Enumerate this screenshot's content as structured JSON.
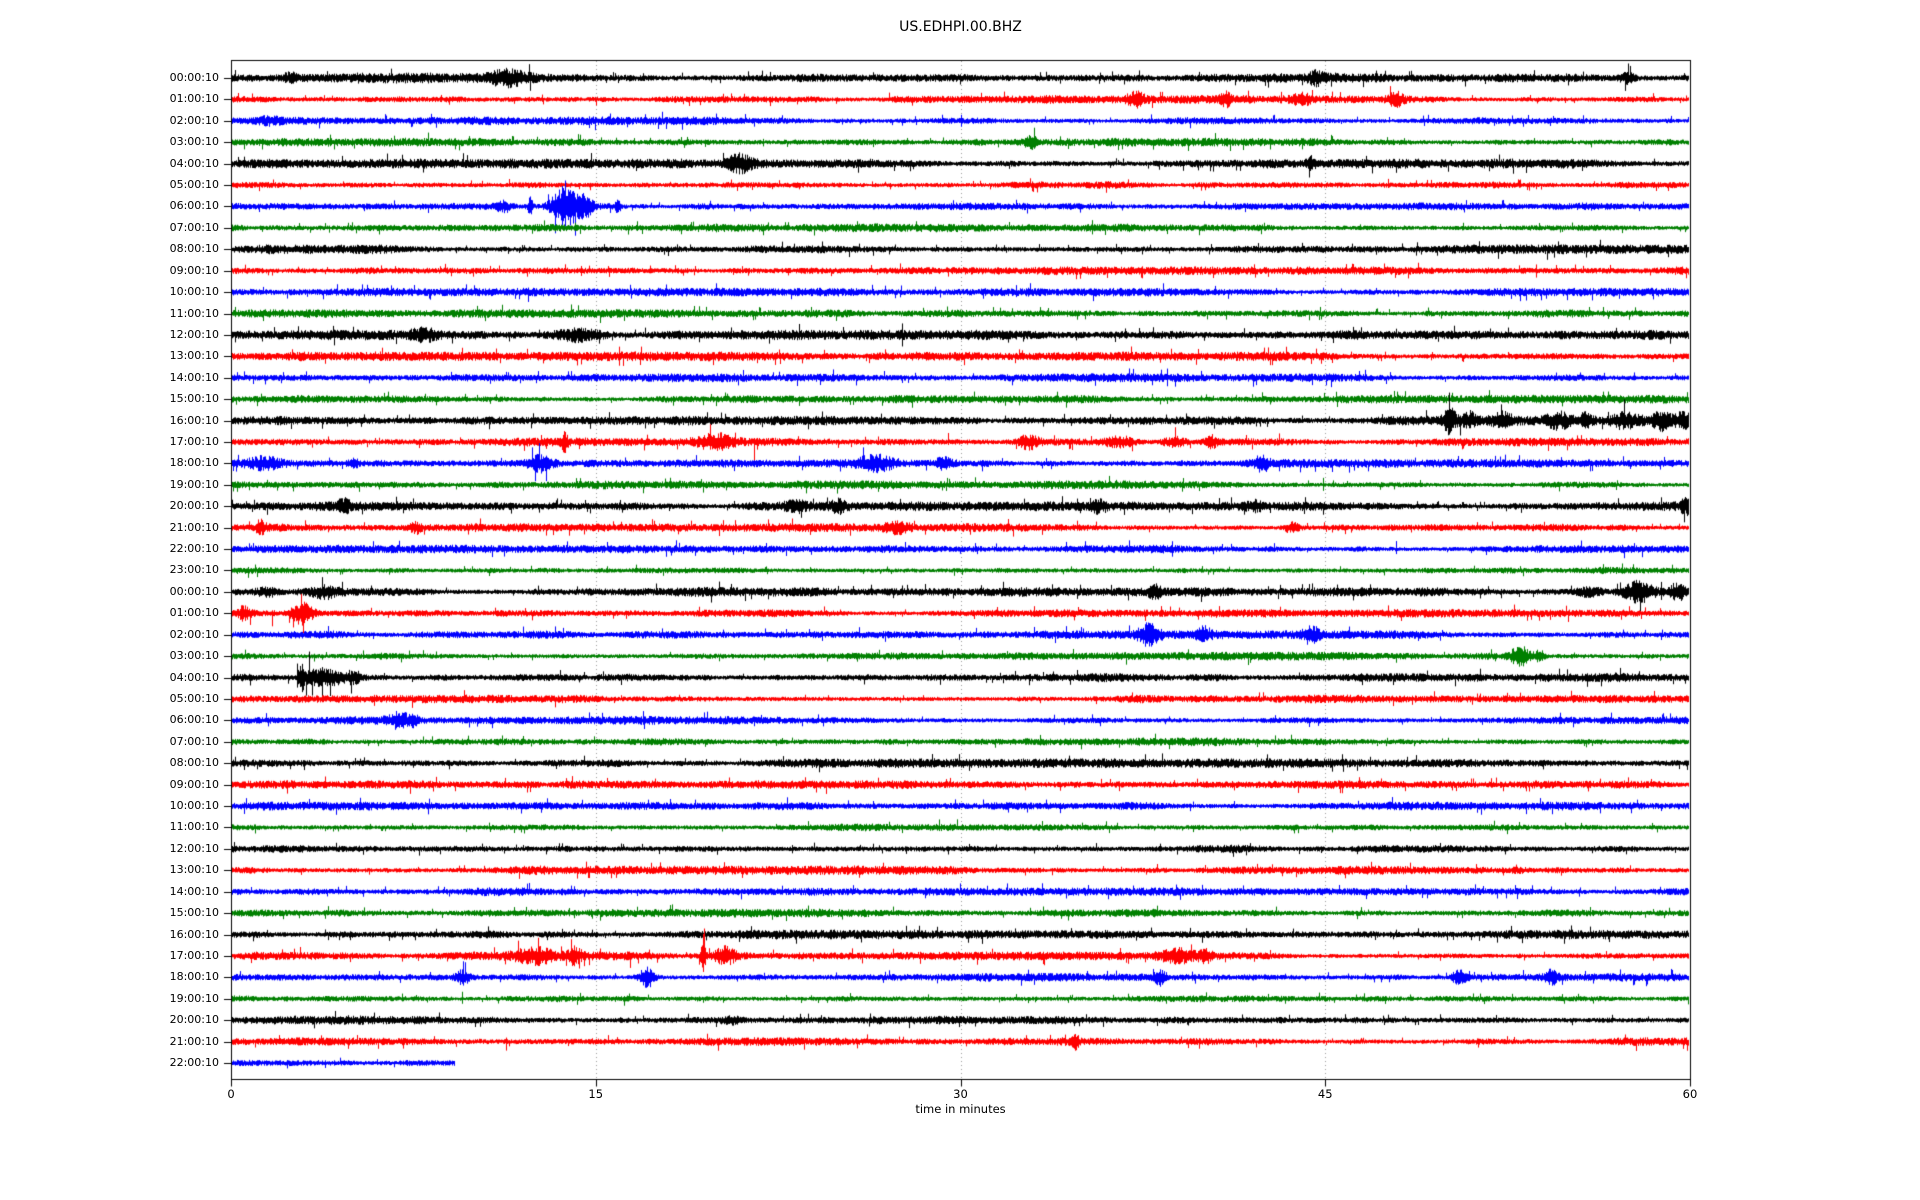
{
  "chart_data": {
    "type": "line",
    "subtype": "helicorder-dayplot",
    "title": "US.EDHPI.00.BHZ",
    "xlabel": "time in minutes",
    "x_range": [
      0,
      60
    ],
    "x_ticks": [
      0,
      15,
      30,
      45,
      60
    ],
    "grid_minutes": [
      15,
      30,
      45
    ],
    "grid_style": "dotted",
    "legend": "none",
    "trace_color_cycle": [
      "#000000",
      "#ff0000",
      "#0000ff",
      "#008000"
    ],
    "rows": [
      {
        "label": "00:00:10",
        "base": 3.4,
        "end": 60,
        "events": [
          {
            "t": 2.4,
            "w": 0.3,
            "a": 3
          },
          {
            "t": 11.4,
            "w": 0.9,
            "a": 4
          },
          {
            "t": 44.6,
            "w": 0.25,
            "a": 4
          },
          {
            "t": 57.4,
            "w": 0.3,
            "a": 4
          }
        ],
        "spikes": [
          {
            "t": 57.4,
            "up": 6,
            "dn": 6
          }
        ]
      },
      {
        "label": "01:00:10",
        "base": 2.7,
        "end": 60,
        "events": [
          {
            "t": 37.2,
            "w": 0.35,
            "a": 6
          },
          {
            "t": 40.9,
            "w": 0.25,
            "a": 4
          },
          {
            "t": 44.0,
            "w": 0.3,
            "a": 4
          },
          {
            "t": 47.9,
            "w": 0.35,
            "a": 5
          }
        ],
        "spikes": [
          {
            "t": 37.2,
            "up": 8,
            "dn": 6
          }
        ]
      },
      {
        "label": "02:00:10",
        "base": 2.7,
        "end": 60,
        "events": [
          {
            "t": 1.5,
            "w": 0.5,
            "a": 2
          }
        ],
        "spikes": []
      },
      {
        "label": "03:00:10",
        "base": 2.7,
        "end": 60,
        "events": [
          {
            "t": 32.9,
            "w": 0.25,
            "a": 4
          }
        ],
        "spikes": []
      },
      {
        "label": "04:00:10",
        "base": 3.1,
        "end": 60,
        "events": [
          {
            "t": 20.9,
            "w": 0.55,
            "a": 6
          },
          {
            "t": 44.4,
            "w": 0.15,
            "a": 4
          }
        ],
        "spikes": []
      },
      {
        "label": "05:00:10",
        "base": 2.7,
        "end": 60,
        "events": [],
        "spikes": []
      },
      {
        "label": "06:00:10",
        "base": 2.7,
        "end": 60,
        "events": [
          {
            "t": 11.2,
            "w": 0.3,
            "a": 4
          },
          {
            "t": 12.3,
            "w": 0.1,
            "a": 7
          },
          {
            "t": 13.75,
            "w": 0.55,
            "a": 16
          },
          {
            "t": 14.6,
            "w": 0.3,
            "a": 7
          },
          {
            "t": 15.9,
            "w": 0.1,
            "a": 5
          }
        ],
        "spikes": [
          {
            "t": 13.75,
            "up": 26,
            "dn": 20
          },
          {
            "t": 12.3,
            "up": 10,
            "dn": 4
          }
        ]
      },
      {
        "label": "07:00:10",
        "base": 2.7,
        "end": 60,
        "events": [],
        "spikes": []
      },
      {
        "label": "08:00:10",
        "base": 3.0,
        "end": 60,
        "events": [],
        "spikes": []
      },
      {
        "label": "09:00:10",
        "base": 2.7,
        "end": 60,
        "events": [],
        "spikes": []
      },
      {
        "label": "10:00:10",
        "base": 2.7,
        "end": 60,
        "events": [],
        "spikes": [
          {
            "t": 32.3,
            "up": 7,
            "dn": 5
          }
        ]
      },
      {
        "label": "11:00:10",
        "base": 2.7,
        "end": 60,
        "events": [],
        "spikes": []
      },
      {
        "label": "12:00:10",
        "base": 3.2,
        "end": 60,
        "events": [
          {
            "t": 7.9,
            "w": 0.5,
            "a": 3
          },
          {
            "t": 14.2,
            "w": 1.0,
            "a": 4
          }
        ],
        "spikes": []
      },
      {
        "label": "13:00:10",
        "base": 3.0,
        "end": 60,
        "events": [],
        "spikes": []
      },
      {
        "label": "14:00:10",
        "base": 2.7,
        "end": 60,
        "events": [],
        "spikes": []
      },
      {
        "label": "15:00:10",
        "base": 2.7,
        "end": 60,
        "events": [],
        "spikes": []
      },
      {
        "label": "16:00:10",
        "base": 3.0,
        "end": 60,
        "events": [
          {
            "t": 50.1,
            "w": 0.25,
            "a": 10
          },
          {
            "t": 50.9,
            "w": 0.3,
            "a": 5
          },
          {
            "t": 52.3,
            "w": 0.4,
            "a": 5
          },
          {
            "t": 54.6,
            "w": 0.5,
            "a": 5
          },
          {
            "t": 55.7,
            "w": 0.3,
            "a": 5
          },
          {
            "t": 57.3,
            "w": 0.6,
            "a": 5
          },
          {
            "t": 58.8,
            "w": 0.4,
            "a": 6
          },
          {
            "t": 59.7,
            "w": 0.3,
            "a": 5
          }
        ],
        "spikes": [
          {
            "t": 50.1,
            "up": 28,
            "dn": 14
          }
        ]
      },
      {
        "label": "17:00:10",
        "base": 2.7,
        "end": 60,
        "events": [
          {
            "t": 13.7,
            "w": 0.12,
            "a": 6
          },
          {
            "t": 19.9,
            "w": 0.7,
            "a": 5
          },
          {
            "t": 32.8,
            "w": 0.4,
            "a": 5
          },
          {
            "t": 36.5,
            "w": 0.6,
            "a": 4
          },
          {
            "t": 38.8,
            "w": 0.5,
            "a": 4
          },
          {
            "t": 40.3,
            "w": 0.3,
            "a": 4
          }
        ],
        "spikes": [
          {
            "t": 21.5,
            "up": 4,
            "dn": 24
          },
          {
            "t": 29.5,
            "up": 9,
            "dn": 3
          },
          {
            "t": 34.6,
            "up": 3,
            "dn": 8
          },
          {
            "t": 13.7,
            "up": 7,
            "dn": 5
          }
        ]
      },
      {
        "label": "18:00:10",
        "base": 2.7,
        "end": 60,
        "events": [
          {
            "t": 1.3,
            "w": 0.8,
            "a": 5
          },
          {
            "t": 5.0,
            "w": 0.2,
            "a": 3
          },
          {
            "t": 12.7,
            "w": 0.5,
            "a": 6
          },
          {
            "t": 26.5,
            "w": 0.7,
            "a": 5
          },
          {
            "t": 29.3,
            "w": 0.4,
            "a": 3
          },
          {
            "t": 42.4,
            "w": 0.3,
            "a": 5
          }
        ],
        "spikes": []
      },
      {
        "label": "19:00:10",
        "base": 2.7,
        "end": 60,
        "events": [],
        "spikes": [
          {
            "t": 36.4,
            "up": 5,
            "dn": 4
          },
          {
            "t": 44.9,
            "up": 7,
            "dn": 6
          }
        ]
      },
      {
        "label": "20:00:10",
        "base": 3.0,
        "end": 60,
        "events": [
          {
            "t": 4.6,
            "w": 0.25,
            "a": 5
          },
          {
            "t": 23.2,
            "w": 0.4,
            "a": 3
          },
          {
            "t": 25.0,
            "w": 0.3,
            "a": 4
          },
          {
            "t": 35.7,
            "w": 0.3,
            "a": 4
          },
          {
            "t": 42.1,
            "w": 0.3,
            "a": 3
          },
          {
            "t": 59.9,
            "w": 0.3,
            "a": 5
          }
        ],
        "spikes": [
          {
            "t": 34.9,
            "up": 3,
            "dn": 7
          }
        ]
      },
      {
        "label": "21:00:10",
        "base": 2.7,
        "end": 60,
        "events": [
          {
            "t": 1.2,
            "w": 0.2,
            "a": 5
          },
          {
            "t": 7.6,
            "w": 0.25,
            "a": 4
          },
          {
            "t": 27.4,
            "w": 0.5,
            "a": 3
          },
          {
            "t": 43.6,
            "w": 0.3,
            "a": 4
          }
        ],
        "spikes": [
          {
            "t": 34.8,
            "up": 7,
            "dn": 3
          }
        ]
      },
      {
        "label": "22:00:10",
        "base": 2.7,
        "end": 60,
        "events": [],
        "spikes": [
          {
            "t": 47.9,
            "up": 8,
            "dn": 5
          }
        ]
      },
      {
        "label": "23:00:10",
        "base": 2.7,
        "end": 60,
        "events": [],
        "spikes": [
          {
            "t": 57.2,
            "up": 7,
            "dn": 3
          }
        ]
      },
      {
        "label": "00:00:10",
        "base": 3.0,
        "end": 60,
        "events": [
          {
            "t": 1.5,
            "w": 0.5,
            "a": 3
          },
          {
            "t": 3.8,
            "w": 0.6,
            "a": 4
          },
          {
            "t": 38.0,
            "w": 0.25,
            "a": 4
          },
          {
            "t": 55.8,
            "w": 0.5,
            "a": 3
          },
          {
            "t": 57.9,
            "w": 0.6,
            "a": 8
          },
          {
            "t": 59.5,
            "w": 0.4,
            "a": 6
          }
        ],
        "spikes": [
          {
            "t": 58.8,
            "up": 10,
            "dn": 8
          },
          {
            "t": 59.3,
            "up": 9,
            "dn": 7
          }
        ]
      },
      {
        "label": "01:00:10",
        "base": 2.7,
        "end": 60,
        "events": [
          {
            "t": 0.5,
            "w": 0.3,
            "a": 4
          },
          {
            "t": 2.9,
            "w": 0.45,
            "a": 8
          }
        ],
        "spikes": [
          {
            "t": 1.7,
            "up": 3,
            "dn": 13
          }
        ]
      },
      {
        "label": "02:00:10",
        "base": 2.7,
        "end": 60,
        "events": [
          {
            "t": 37.7,
            "w": 0.45,
            "a": 7
          },
          {
            "t": 40.0,
            "w": 0.25,
            "a": 5
          },
          {
            "t": 44.4,
            "w": 0.3,
            "a": 6
          }
        ],
        "spikes": []
      },
      {
        "label": "03:00:10",
        "base": 2.7,
        "end": 60,
        "events": [
          {
            "t": 53.0,
            "w": 0.4,
            "a": 7
          },
          {
            "t": 53.8,
            "w": 0.2,
            "a": 5
          }
        ],
        "spikes": []
      },
      {
        "label": "04:00:10",
        "base": 3.0,
        "end": 60,
        "events": [
          {
            "t": 2.9,
            "w": 0.15,
            "a": 10
          },
          {
            "t": 3.8,
            "w": 0.7,
            "a": 8
          },
          {
            "t": 5.0,
            "w": 0.4,
            "a": 4
          }
        ],
        "spikes": [
          {
            "t": 3.2,
            "up": 26,
            "dn": 6
          },
          {
            "t": 3.35,
            "up": 4,
            "dn": 18
          },
          {
            "t": 2.7,
            "up": 14,
            "dn": 10
          }
        ]
      },
      {
        "label": "05:00:10",
        "base": 2.7,
        "end": 60,
        "events": [],
        "spikes": []
      },
      {
        "label": "06:00:10",
        "base": 2.7,
        "end": 60,
        "events": [
          {
            "t": 6.9,
            "w": 0.4,
            "a": 5
          },
          {
            "t": 7.5,
            "w": 0.15,
            "a": 4
          }
        ],
        "spikes": []
      },
      {
        "label": "07:00:10",
        "base": 2.7,
        "end": 60,
        "events": [],
        "spikes": []
      },
      {
        "label": "08:00:10",
        "base": 3.0,
        "end": 60,
        "events": [],
        "spikes": []
      },
      {
        "label": "09:00:10",
        "base": 2.7,
        "end": 60,
        "events": [],
        "spikes": []
      },
      {
        "label": "10:00:10",
        "base": 2.7,
        "end": 60,
        "events": [],
        "spikes": []
      },
      {
        "label": "11:00:10",
        "base": 2.7,
        "end": 60,
        "events": [],
        "spikes": []
      },
      {
        "label": "12:00:10",
        "base": 3.0,
        "end": 60,
        "events": [],
        "spikes": []
      },
      {
        "label": "13:00:10",
        "base": 2.9,
        "end": 60,
        "events": [],
        "spikes": []
      },
      {
        "label": "14:00:10",
        "base": 2.7,
        "end": 60,
        "events": [],
        "spikes": []
      },
      {
        "label": "15:00:10",
        "base": 2.7,
        "end": 60,
        "events": [],
        "spikes": []
      },
      {
        "label": "16:00:10",
        "base": 3.0,
        "end": 60,
        "events": [],
        "spikes": []
      },
      {
        "label": "17:00:10",
        "base": 2.7,
        "end": 60,
        "events": [
          {
            "t": 12.5,
            "w": 0.8,
            "a": 5
          },
          {
            "t": 14.1,
            "w": 0.3,
            "a": 5
          },
          {
            "t": 19.4,
            "w": 0.12,
            "a": 10
          },
          {
            "t": 20.3,
            "w": 0.4,
            "a": 6
          },
          {
            "t": 38.9,
            "w": 0.7,
            "a": 5
          },
          {
            "t": 40.1,
            "w": 0.3,
            "a": 4
          }
        ],
        "spikes": [
          {
            "t": 16.4,
            "up": 3,
            "dn": 12
          },
          {
            "t": 19.4,
            "up": 22,
            "dn": 16
          }
        ]
      },
      {
        "label": "18:00:10",
        "base": 2.7,
        "end": 60,
        "events": [
          {
            "t": 9.5,
            "w": 0.3,
            "a": 5
          },
          {
            "t": 17.1,
            "w": 0.3,
            "a": 8
          },
          {
            "t": 38.2,
            "w": 0.25,
            "a": 5
          },
          {
            "t": 50.5,
            "w": 0.3,
            "a": 5
          },
          {
            "t": 54.3,
            "w": 0.25,
            "a": 5
          }
        ],
        "spikes": []
      },
      {
        "label": "19:00:10",
        "base": 2.7,
        "end": 60,
        "events": [],
        "spikes": [
          {
            "t": 9.5,
            "up": 7,
            "dn": 5
          }
        ]
      },
      {
        "label": "20:00:10",
        "base": 3.0,
        "end": 60,
        "events": [
          {
            "t": 20.5,
            "w": 0.4,
            "a": 2
          }
        ],
        "spikes": []
      },
      {
        "label": "21:00:10",
        "base": 2.7,
        "end": 60,
        "events": [
          {
            "t": 34.7,
            "w": 0.15,
            "a": 4
          }
        ],
        "spikes": [
          {
            "t": 11.3,
            "up": 4,
            "dn": 9
          }
        ]
      },
      {
        "label": "22:00:10",
        "base": 2.7,
        "end": 9.2,
        "events": [],
        "spikes": []
      }
    ]
  }
}
